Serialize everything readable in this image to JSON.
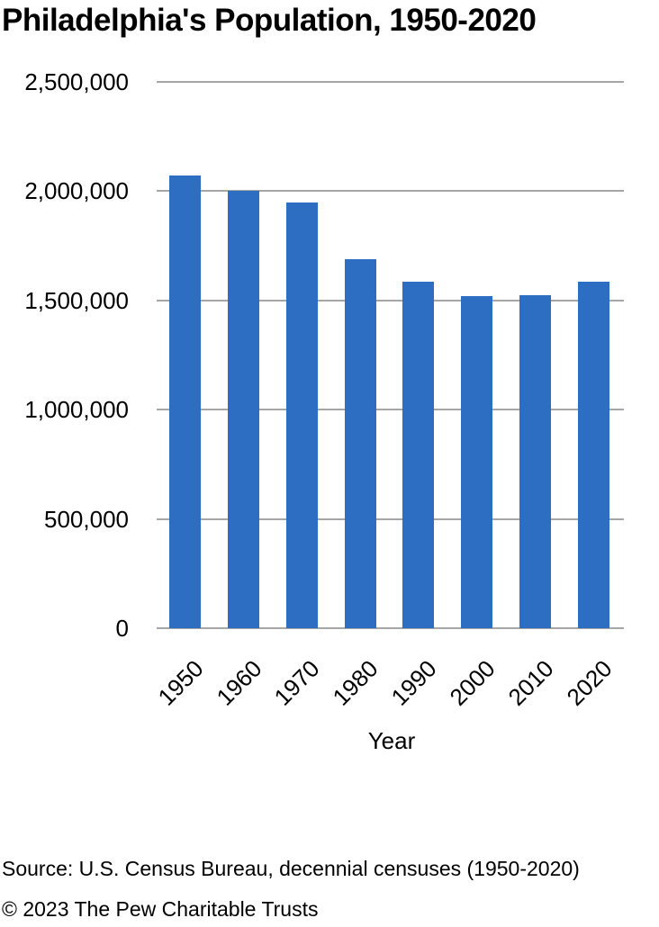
{
  "title": "Philadelphia's Population, 1950-2020",
  "chart_data": {
    "type": "bar",
    "categories": [
      "1950",
      "1960",
      "1970",
      "1980",
      "1990",
      "2000",
      "2010",
      "2020"
    ],
    "values": [
      2070000,
      2000000,
      1950000,
      1690000,
      1585000,
      1520000,
      1525000,
      1585000
    ],
    "title": "Philadelphia's Population, 1950-2020",
    "xlabel": "Year",
    "ylabel": "",
    "ylim": [
      0,
      2500000
    ],
    "ytick_interval": 500000,
    "ytick_labels": [
      "0",
      "500,000",
      "1,000,000",
      "1,500,000",
      "2,000,000",
      "2,500,000"
    ],
    "grid": true,
    "legend": "none",
    "bar_color": "#2D6EC3",
    "gridline_color": "#a6a6a6",
    "text_color": "#000000"
  },
  "footer": {
    "source": "Source: U.S. Census Bureau, decennial censuses (1950-2020)",
    "copyright": "© 2023 The Pew Charitable Trusts"
  }
}
